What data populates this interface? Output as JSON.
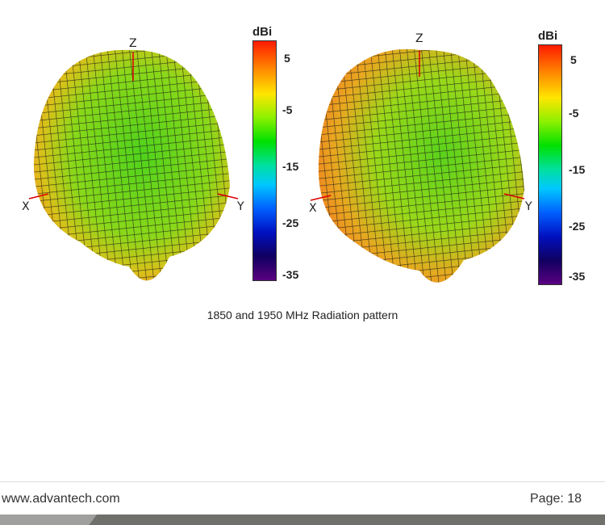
{
  "figures": [
    {
      "axes": {
        "z": "Z",
        "x": "X",
        "y": "Y"
      },
      "colorbar": {
        "unit": "dBi",
        "ticks": [
          "5",
          "-5",
          "-15",
          "-25",
          "-35"
        ]
      }
    },
    {
      "axes": {
        "z": "Z",
        "x": "X",
        "y": "Y"
      },
      "colorbar": {
        "unit": "dBi",
        "ticks": [
          "5",
          "-5",
          "-15",
          "-25",
          "-35"
        ]
      }
    }
  ],
  "caption": "1850 and 1950 MHz Radiation pattern",
  "footer": {
    "website": "www.advantech.com",
    "page": "Page: 18"
  },
  "colors": {
    "footer_bar": "#6f706c",
    "footer_bar_light": "#a0a09e"
  }
}
